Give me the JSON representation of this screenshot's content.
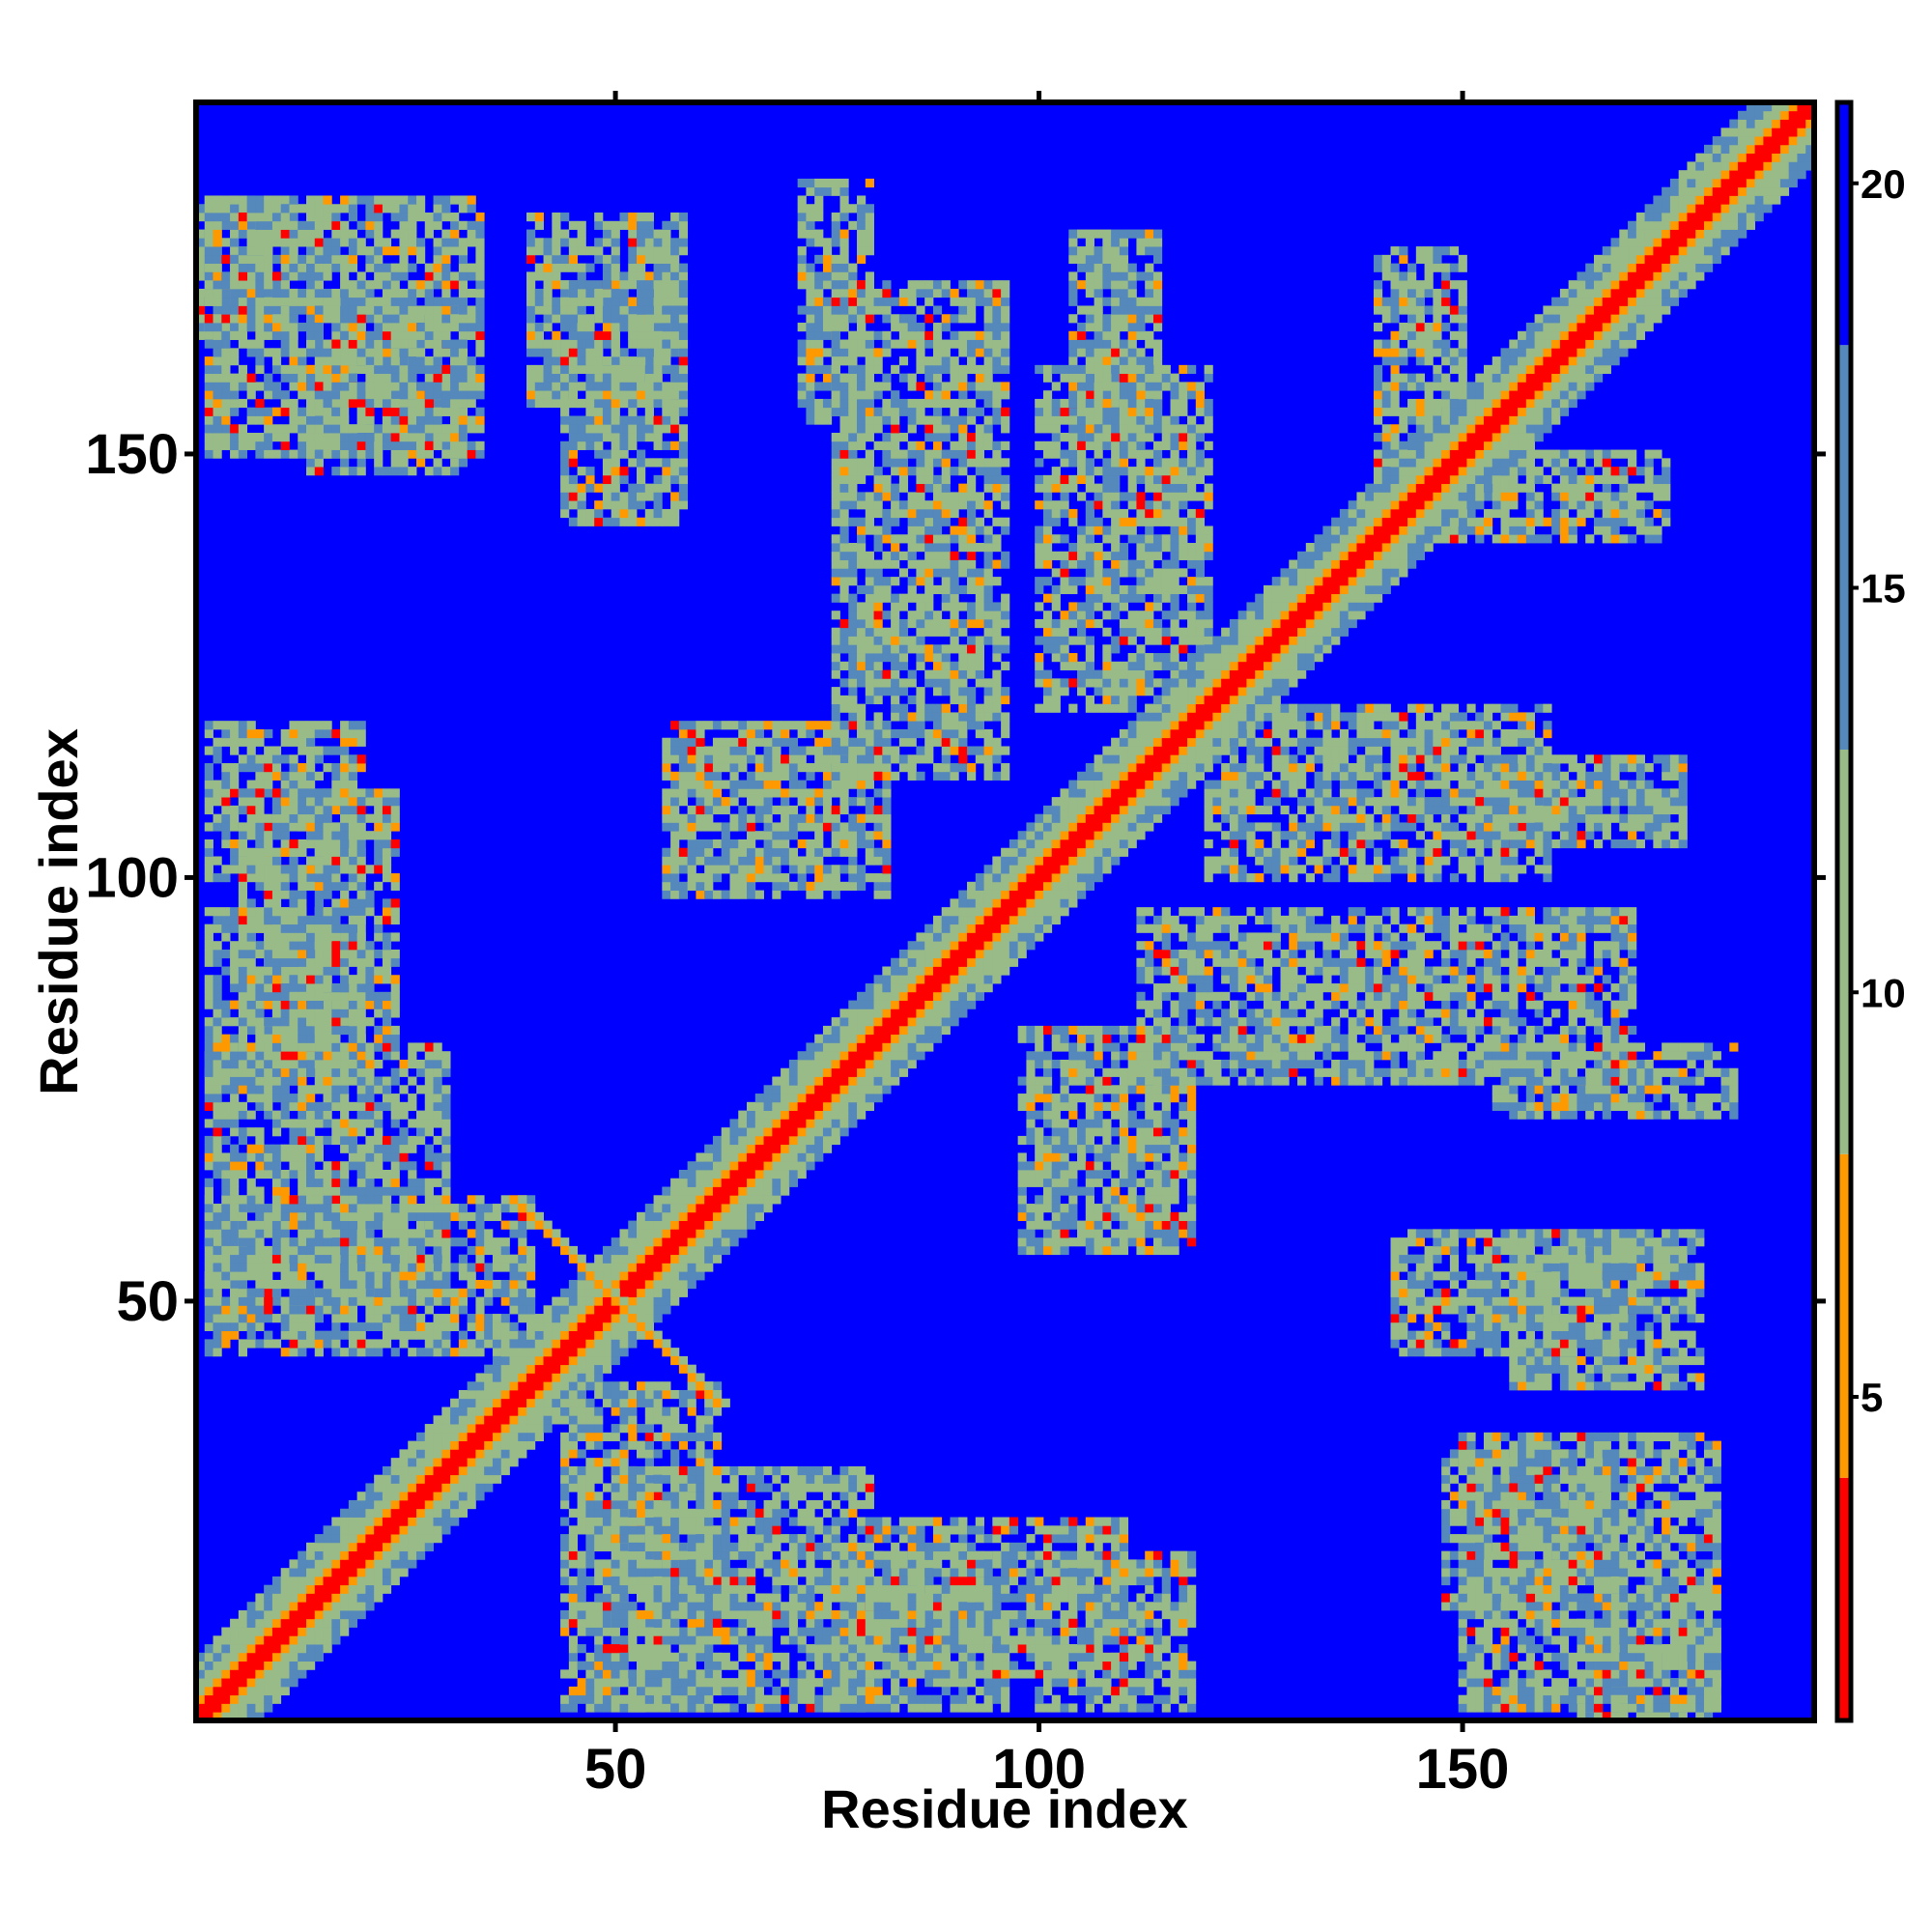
{
  "chart_data": {
    "type": "heatmap",
    "title": "",
    "xlabel": "Residue index",
    "ylabel": "Residue index",
    "xlim": [
      1,
      191
    ],
    "ylim": [
      1,
      191
    ],
    "x_ticks": [
      50,
      100,
      150
    ],
    "y_ticks": [
      50,
      100,
      150
    ],
    "colorbar": {
      "ticks": [
        5,
        10,
        15,
        20
      ],
      "range": [
        1,
        21
      ],
      "colors": [
        "#ff0000",
        "#ff9900",
        "#99bb88",
        "#5588bb",
        "#0000ff"
      ]
    },
    "cell_size_residues": 1,
    "matrix_description_values": {
      "diagonal_value": 1,
      "background_value": 21,
      "contact_blocks": [
        {
          "x": [
            1,
            12
          ],
          "y": [
            164,
            180
          ],
          "value": 11
        },
        {
          "x": [
            14,
            32
          ],
          "y": [
            148,
            168
          ],
          "value": 11
        },
        {
          "x": [
            40,
            58
          ],
          "y": [
            156,
            178
          ],
          "value": 11
        },
        {
          "x": [
            72,
            80
          ],
          "y": [
            154,
            182
          ],
          "value": 11
        },
        {
          "x": [
            104,
            114
          ],
          "y": [
            150,
            176
          ],
          "value": 11
        },
        {
          "x": [
            140,
            150
          ],
          "y": [
            140,
            174
          ],
          "value": 11
        },
        {
          "x": [
            2,
            20
          ],
          "y": [
            100,
            118
          ],
          "value": 11
        },
        {
          "x": [
            56,
            82
          ],
          "y": [
            98,
            118
          ],
          "value": 11
        },
        {
          "x": [
            120,
            160
          ],
          "y": [
            100,
            120
          ],
          "value": 11
        },
        {
          "x": [
            2,
            20
          ],
          "y": [
            76,
            96
          ],
          "value": 11
        },
        {
          "x": [
            112,
            170
          ],
          "y": [
            76,
            96
          ],
          "value": 11
        },
        {
          "x": [
            2,
            40
          ],
          "y": [
            44,
            62
          ],
          "value": 11
        },
        {
          "x": [
            142,
            170
          ],
          "y": [
            44,
            58
          ],
          "value": 11
        },
        {
          "x": [
            50,
            80
          ],
          "y": [
            2,
            30
          ],
          "value": 11
        },
        {
          "x": [
            80,
            110
          ],
          "y": [
            6,
            24
          ],
          "value": 11
        },
        {
          "x": [
            150,
            180
          ],
          "y": [
            2,
            34
          ],
          "value": 11
        }
      ]
    }
  }
}
